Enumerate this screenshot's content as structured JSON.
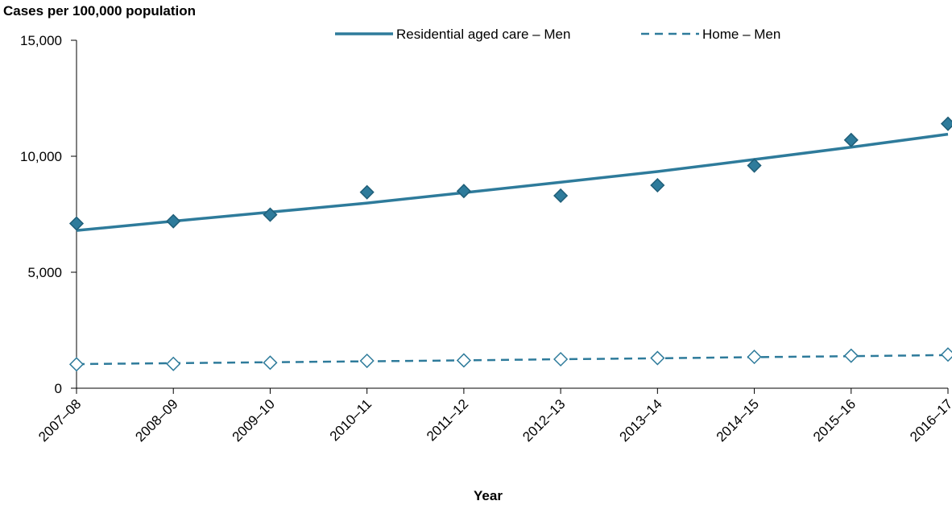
{
  "chart_data": {
    "type": "line",
    "ylabel": "Cases per 100,000 population",
    "xlabel": "Year",
    "ylim": [
      0,
      15000
    ],
    "yticks": [
      0,
      5000,
      10000,
      15000
    ],
    "ytick_labels": [
      "0",
      "5,000",
      "10,000",
      "15,000"
    ],
    "categories": [
      "2007–08",
      "2008–09",
      "2009–10",
      "2010–11",
      "2011–12",
      "2012–13",
      "2013–14",
      "2014–15",
      "2015–16",
      "2016–17"
    ],
    "legend_position": "top-right",
    "grid": false,
    "series": [
      {
        "name": "Residential aged care – Men",
        "color": "#2e7b9b",
        "marker": "filled-diamond",
        "trend_line": "solid",
        "values": [
          7100,
          7200,
          7480,
          8450,
          8500,
          8300,
          8750,
          9600,
          10700,
          11400
        ],
        "trend": [
          6800,
          7200,
          7590,
          7980,
          8430,
          8880,
          9340,
          9860,
          10390,
          10950
        ]
      },
      {
        "name": "Home – Men",
        "color": "#2e7b9b",
        "marker": "hollow-diamond",
        "trend_line": "dashed",
        "values": [
          1030,
          1050,
          1100,
          1180,
          1200,
          1250,
          1300,
          1350,
          1400,
          1450
        ],
        "trend": [
          1040,
          1080,
          1120,
          1160,
          1200,
          1250,
          1290,
          1340,
          1380,
          1430
        ]
      }
    ]
  }
}
